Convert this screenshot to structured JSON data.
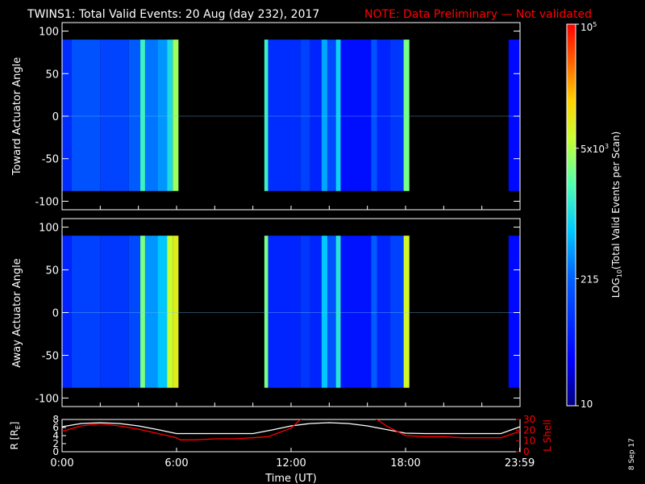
{
  "title": "TWINS1: Total Valid Events: 20 Aug (day 232), 2017",
  "note": "NOTE: Data Preliminary — Not validated",
  "colors": {
    "background": "#000000",
    "axes": "#ffffff",
    "note": "#ff0000",
    "orbit_r": "#ffffff",
    "orbit_lshell": "#ff0000"
  },
  "date_stamp": "8 Sep 17",
  "colorbar": {
    "label": "LOG10(Total Valid Events per Scan)",
    "label_base": "LOG",
    "label_sub": "10",
    "label_rest": "(Total Valid Events per Scan)",
    "scale": "log",
    "range": [
      10,
      100000
    ],
    "ticks": [
      {
        "value": 10,
        "label": "10"
      },
      {
        "value": 215,
        "label": "215"
      },
      {
        "value": 5000,
        "label": "5x10",
        "exp": "3"
      },
      {
        "value": 100000,
        "label": "10",
        "exp": "5"
      }
    ]
  },
  "chart_data": [
    {
      "type": "heatmap",
      "panel": "toward",
      "ylabel": "Toward Actuator Angle",
      "xlim": [
        0,
        24
      ],
      "ylim": [
        -110,
        110
      ],
      "yticks": [
        100,
        50,
        0,
        -50,
        -100
      ],
      "y_extent": [
        -88,
        90
      ],
      "coverage_hours": [
        [
          0,
          6.1
        ],
        [
          10.6,
          18.2
        ],
        [
          23.4,
          24
        ]
      ],
      "bands": [
        {
          "x0": 0.0,
          "x1": 0.5,
          "level": 0.22
        },
        {
          "x0": 0.5,
          "x1": 2.0,
          "level": 0.3
        },
        {
          "x0": 2.0,
          "x1": 3.5,
          "level": 0.27
        },
        {
          "x0": 3.5,
          "x1": 4.1,
          "level": 0.32
        },
        {
          "x0": 4.1,
          "x1": 4.35,
          "level": 0.55
        },
        {
          "x0": 4.35,
          "x1": 5.0,
          "level": 0.36
        },
        {
          "x0": 5.0,
          "x1": 5.5,
          "level": 0.4
        },
        {
          "x0": 5.5,
          "x1": 5.8,
          "level": 0.5
        },
        {
          "x0": 5.8,
          "x1": 6.1,
          "level": 0.66
        },
        {
          "x0": 10.6,
          "x1": 10.8,
          "level": 0.55
        },
        {
          "x0": 10.8,
          "x1": 12.5,
          "level": 0.22
        },
        {
          "x0": 12.5,
          "x1": 13.0,
          "level": 0.26
        },
        {
          "x0": 13.0,
          "x1": 13.6,
          "level": 0.2
        },
        {
          "x0": 13.6,
          "x1": 13.9,
          "level": 0.42
        },
        {
          "x0": 13.9,
          "x1": 14.35,
          "level": 0.28
        },
        {
          "x0": 14.35,
          "x1": 14.6,
          "level": 0.48
        },
        {
          "x0": 14.6,
          "x1": 16.2,
          "level": 0.15
        },
        {
          "x0": 16.2,
          "x1": 16.5,
          "level": 0.3
        },
        {
          "x0": 16.5,
          "x1": 17.2,
          "level": 0.2
        },
        {
          "x0": 17.2,
          "x1": 17.9,
          "level": 0.24
        },
        {
          "x0": 17.9,
          "x1": 18.2,
          "level": 0.62
        },
        {
          "x0": 23.4,
          "x1": 24.0,
          "level": 0.14
        }
      ]
    },
    {
      "type": "heatmap",
      "panel": "away",
      "ylabel": "Away Actuator Angle",
      "xlim": [
        0,
        24
      ],
      "ylim": [
        -110,
        110
      ],
      "yticks": [
        100,
        50,
        0,
        -50,
        -100
      ],
      "y_extent": [
        -88,
        90
      ],
      "coverage_hours": [
        [
          0,
          6.1
        ],
        [
          10.6,
          18.2
        ],
        [
          23.4,
          24
        ]
      ],
      "bands": [
        {
          "x0": 0.0,
          "x1": 0.5,
          "level": 0.2
        },
        {
          "x0": 0.5,
          "x1": 2.0,
          "level": 0.26
        },
        {
          "x0": 2.0,
          "x1": 3.5,
          "level": 0.24
        },
        {
          "x0": 3.5,
          "x1": 4.1,
          "level": 0.28
        },
        {
          "x0": 4.1,
          "x1": 4.35,
          "level": 0.62
        },
        {
          "x0": 4.35,
          "x1": 5.0,
          "level": 0.4
        },
        {
          "x0": 5.0,
          "x1": 5.5,
          "level": 0.46
        },
        {
          "x0": 5.5,
          "x1": 5.8,
          "level": 0.7
        },
        {
          "x0": 5.8,
          "x1": 6.1,
          "level": 0.74
        },
        {
          "x0": 10.6,
          "x1": 10.8,
          "level": 0.62
        },
        {
          "x0": 10.8,
          "x1": 12.5,
          "level": 0.2
        },
        {
          "x0": 12.5,
          "x1": 13.0,
          "level": 0.24
        },
        {
          "x0": 13.0,
          "x1": 13.6,
          "level": 0.2
        },
        {
          "x0": 13.6,
          "x1": 13.9,
          "level": 0.46
        },
        {
          "x0": 13.9,
          "x1": 14.35,
          "level": 0.3
        },
        {
          "x0": 14.35,
          "x1": 14.6,
          "level": 0.52
        },
        {
          "x0": 14.6,
          "x1": 16.2,
          "level": 0.16
        },
        {
          "x0": 16.2,
          "x1": 16.5,
          "level": 0.32
        },
        {
          "x0": 16.5,
          "x1": 17.2,
          "level": 0.2
        },
        {
          "x0": 17.2,
          "x1": 17.9,
          "level": 0.26
        },
        {
          "x0": 17.9,
          "x1": 18.2,
          "level": 0.72
        },
        {
          "x0": 23.4,
          "x1": 24.0,
          "level": 0.14
        }
      ]
    },
    {
      "type": "line",
      "panel": "orbit",
      "xlabel": "Time (UT)",
      "xlim": [
        0,
        24
      ],
      "xticks": [
        0,
        6,
        12,
        18,
        23.983
      ],
      "xticklabels": [
        "0:00",
        "6:00",
        "12:00",
        "18:00",
        "23:59"
      ],
      "ylabel_left": "R [Re]",
      "ylabel_left_base": "R [R",
      "ylabel_left_sub": "E",
      "ylabel_left_close": "]",
      "ylim_left": [
        0,
        8
      ],
      "yticks_left": [
        0,
        2,
        4,
        6,
        8
      ],
      "ylabel_right": "L Shell",
      "ylim_right": [
        0,
        30
      ],
      "yticks_right": [
        0,
        10,
        20,
        30
      ],
      "series": [
        {
          "axis": "left",
          "color": "#ffffff",
          "x": [
            0,
            1,
            2,
            3,
            4,
            5,
            6,
            7,
            8,
            9,
            10,
            11,
            12,
            13,
            14,
            15,
            16,
            17,
            18,
            19,
            20,
            21,
            22,
            23,
            24
          ],
          "y": [
            6.2,
            7.0,
            7.2,
            7.0,
            6.4,
            5.5,
            4.5,
            4.5,
            4.5,
            4.5,
            4.5,
            5.4,
            6.4,
            7.0,
            7.2,
            7.0,
            6.4,
            5.5,
            4.6,
            4.5,
            4.5,
            4.5,
            4.5,
            4.5,
            6.2
          ]
        },
        {
          "axis": "right",
          "color": "#ff0000",
          "x": [
            0,
            1,
            2,
            3,
            4,
            5,
            6,
            6.2,
            7,
            8,
            9,
            10,
            10.8,
            12,
            12.5,
            13,
            16,
            16.5,
            17,
            18,
            19,
            20,
            21,
            22,
            23,
            24
          ],
          "y": [
            19,
            24,
            26,
            24,
            21,
            17,
            13,
            11,
            11,
            12,
            12,
            13,
            14,
            22,
            30,
            33,
            33,
            30,
            24,
            15,
            14,
            14,
            13,
            13,
            13,
            19
          ]
        }
      ]
    }
  ]
}
